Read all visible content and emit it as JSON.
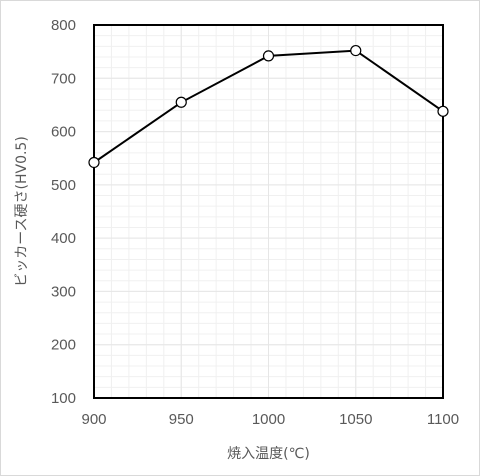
{
  "chart_data": {
    "type": "line",
    "title": "",
    "xlabel": "焼入温度(℃)",
    "ylabel": "ビッカース硬さ(HV0.5)",
    "x": [
      900,
      950,
      1000,
      1050,
      1100
    ],
    "series": [
      {
        "values": [
          542,
          655,
          742,
          752,
          638
        ]
      }
    ],
    "xlim": [
      900,
      1100
    ],
    "ylim": [
      100,
      800
    ],
    "xticks": [
      "900",
      "950",
      "1000",
      "1050",
      "1100"
    ],
    "yticks": [
      "100",
      "200",
      "300",
      "400",
      "500",
      "600",
      "700",
      "800"
    ],
    "grid": true,
    "legend": "none",
    "colors": {
      "line": "#000000",
      "marker_fill": "#ffffff",
      "grid": "#e6e6e6",
      "axis": "#000000"
    }
  }
}
